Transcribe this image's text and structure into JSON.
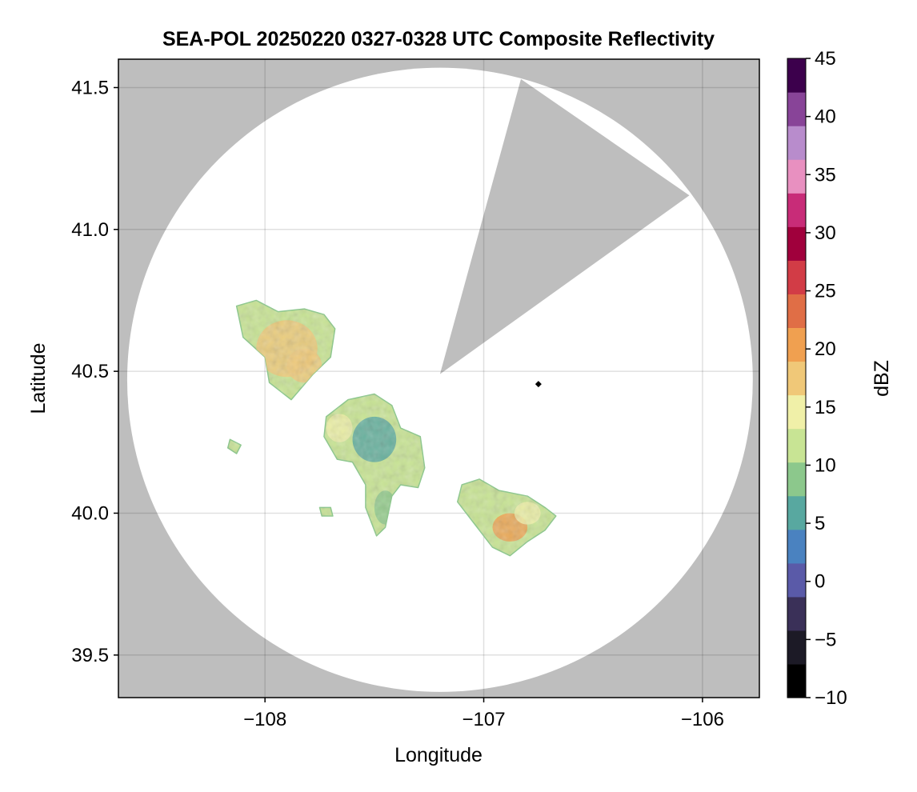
{
  "chart_data": {
    "type": "heatmap",
    "title": "SEA-POL 20250220 0327-0328 UTC Composite Reflectivity",
    "xlabel": "Longitude",
    "ylabel": "Latitude",
    "xlim": [
      -108.67,
      -105.74
    ],
    "ylim": [
      39.35,
      41.6
    ],
    "x_ticks": [
      -108,
      -107,
      -106
    ],
    "x_tick_labels": [
      "−108",
      "−107",
      "−106"
    ],
    "y_ticks": [
      39.5,
      40.0,
      40.5,
      41.0,
      41.5
    ],
    "y_tick_labels": [
      "39.5",
      "40.0",
      "40.5",
      "41.0",
      "41.5"
    ],
    "grid": true,
    "background_color": "#bebebe",
    "coverage_color": "#ffffff",
    "radar": {
      "center": [
        -107.2,
        40.47
      ],
      "range_lon_half_width": 1.43,
      "range_lat_half_height": 1.1,
      "blocked_sector_vertices": [
        [
          -107.2,
          40.49
        ],
        [
          -106.83,
          41.53
        ],
        [
          -106.06,
          41.12
        ]
      ]
    },
    "marker": {
      "lon": -106.75,
      "lat": 40.455,
      "color": "#000000"
    },
    "colorbar": {
      "label": "dBZ",
      "range": [
        -10,
        45
      ],
      "ticks": [
        -10,
        -5,
        0,
        5,
        10,
        15,
        20,
        25,
        30,
        35,
        40,
        45
      ],
      "tick_labels": [
        "−10",
        "−5",
        "0",
        "5",
        "10",
        "15",
        "20",
        "25",
        "30",
        "35",
        "40",
        "45"
      ],
      "colors": [
        "#000000",
        "#1c1a26",
        "#3a3058",
        "#5a5aa8",
        "#4a82c0",
        "#58a8a0",
        "#8cc88c",
        "#c8e494",
        "#f0f0a8",
        "#f0c878",
        "#f0a050",
        "#e06e46",
        "#d23c46",
        "#a0003c",
        "#c82c78",
        "#e890c0",
        "#b88ccc",
        "#884498",
        "#3c004c"
      ]
    },
    "echo_regions": [
      {
        "name": "northwest-cell",
        "polygon": [
          [
            -108.13,
            40.73
          ],
          [
            -108.04,
            40.75
          ],
          [
            -107.94,
            40.71
          ],
          [
            -107.82,
            40.72
          ],
          [
            -107.73,
            40.7
          ],
          [
            -107.68,
            40.65
          ],
          [
            -107.7,
            40.55
          ],
          [
            -107.78,
            40.49
          ],
          [
            -107.88,
            40.4
          ],
          [
            -107.98,
            40.46
          ],
          [
            -108.0,
            40.55
          ],
          [
            -108.1,
            40.62
          ]
        ],
        "cores": [
          {
            "lon": -107.9,
            "lat": 40.58,
            "r_lon": 0.14,
            "r_lat": 0.1,
            "dbz": 17
          },
          {
            "lon": -107.82,
            "lat": 40.52,
            "r_lon": 0.08,
            "r_lat": 0.06,
            "dbz": 18
          }
        ]
      },
      {
        "name": "central-band",
        "polygon": [
          [
            -107.72,
            40.34
          ],
          [
            -107.62,
            40.4
          ],
          [
            -107.5,
            40.42
          ],
          [
            -107.42,
            40.38
          ],
          [
            -107.38,
            40.3
          ],
          [
            -107.29,
            40.27
          ],
          [
            -107.27,
            40.16
          ],
          [
            -107.3,
            40.09
          ],
          [
            -107.38,
            40.1
          ],
          [
            -107.42,
            40.06
          ],
          [
            -107.45,
            39.95
          ],
          [
            -107.49,
            39.92
          ],
          [
            -107.54,
            40.02
          ],
          [
            -107.54,
            40.1
          ],
          [
            -107.6,
            40.18
          ],
          [
            -107.67,
            40.19
          ],
          [
            -107.73,
            40.27
          ]
        ],
        "cores": [
          {
            "lon": -107.5,
            "lat": 40.26,
            "r_lon": 0.1,
            "r_lat": 0.08,
            "dbz": 5
          },
          {
            "lon": -107.66,
            "lat": 40.3,
            "r_lon": 0.06,
            "r_lat": 0.05,
            "dbz": 16
          },
          {
            "lon": -107.45,
            "lat": 40.02,
            "r_lon": 0.05,
            "r_lat": 0.06,
            "dbz": 8
          }
        ]
      },
      {
        "name": "southeast-cell",
        "polygon": [
          [
            -107.02,
            40.12
          ],
          [
            -106.93,
            40.08
          ],
          [
            -106.8,
            40.06
          ],
          [
            -106.72,
            40.02
          ],
          [
            -106.67,
            39.99
          ],
          [
            -106.72,
            39.94
          ],
          [
            -106.8,
            39.9
          ],
          [
            -106.88,
            39.85
          ],
          [
            -106.96,
            39.88
          ],
          [
            -107.05,
            39.97
          ],
          [
            -107.12,
            40.04
          ],
          [
            -107.1,
            40.1
          ]
        ],
        "cores": [
          {
            "lon": -106.88,
            "lat": 39.95,
            "r_lon": 0.08,
            "r_lat": 0.05,
            "dbz": 20
          },
          {
            "lon": -106.8,
            "lat": 40.0,
            "r_lon": 0.06,
            "r_lat": 0.04,
            "dbz": 16
          }
        ]
      },
      {
        "name": "scattered-echo-west",
        "polygon": [
          [
            -107.75,
            40.02
          ],
          [
            -107.7,
            40.02
          ],
          [
            -107.69,
            39.99
          ],
          [
            -107.74,
            39.99
          ]
        ],
        "cores": []
      },
      {
        "name": "scattered-echo-far-west",
        "polygon": [
          [
            -108.16,
            40.26
          ],
          [
            -108.11,
            40.24
          ],
          [
            -108.13,
            40.21
          ],
          [
            -108.17,
            40.23
          ]
        ],
        "cores": []
      }
    ]
  }
}
